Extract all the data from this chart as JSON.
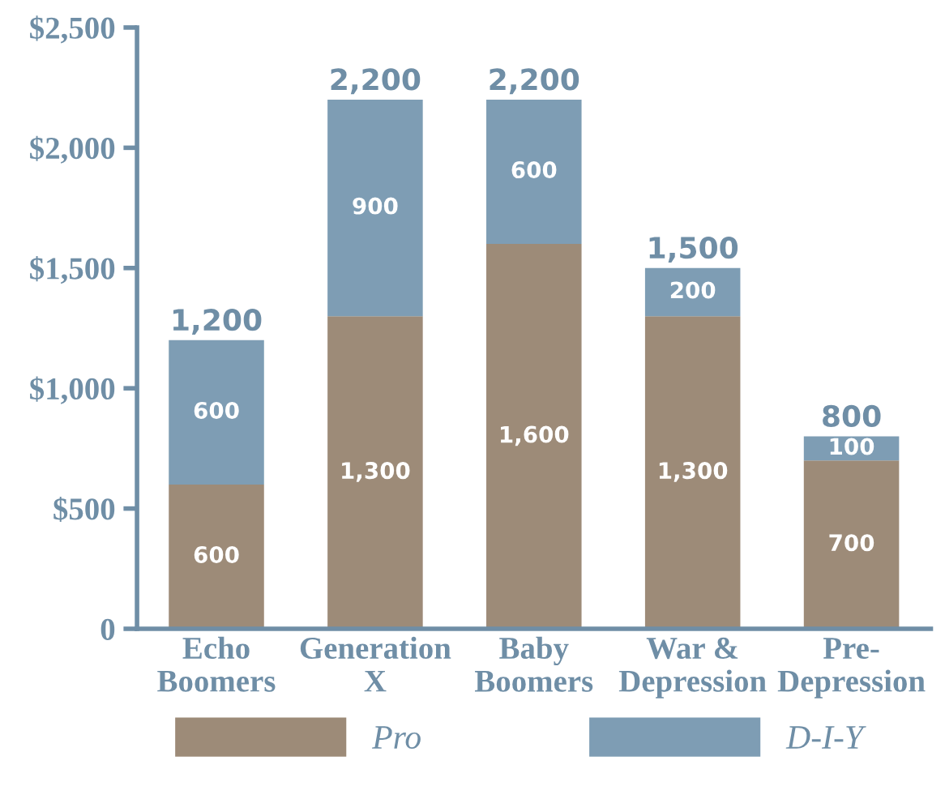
{
  "chart_data": {
    "type": "bar",
    "stacked": true,
    "categories": [
      "Echo\nBoomers",
      "Generation\nX",
      "Baby\nBoomers",
      "War &\nDepression",
      "Pre-\nDepression"
    ],
    "series": [
      {
        "name": "Pro",
        "color": "#9d8b78",
        "values": [
          600,
          1300,
          1600,
          1300,
          700
        ],
        "value_labels": [
          "600",
          "1,300",
          "1,600",
          "1,300",
          "700"
        ]
      },
      {
        "name": "D-I-Y",
        "color": "#7e9db4",
        "values": [
          600,
          900,
          600,
          200,
          100
        ],
        "value_labels": [
          "600",
          "900",
          "600",
          "200",
          "100"
        ]
      }
    ],
    "totals": [
      "1,200",
      "2,200",
      "2,200",
      "1,500",
      "800"
    ],
    "ylim": [
      0,
      2500
    ],
    "yticks": [
      {
        "value": 0,
        "label": "0"
      },
      {
        "value": 500,
        "label": "$500"
      },
      {
        "value": 1000,
        "label": "$1,000"
      },
      {
        "value": 1500,
        "label": "$1,500"
      },
      {
        "value": 2000,
        "label": "$2,000"
      },
      {
        "value": 2500,
        "label": "$2,500"
      }
    ],
    "grid": false,
    "legend": "bottom"
  }
}
